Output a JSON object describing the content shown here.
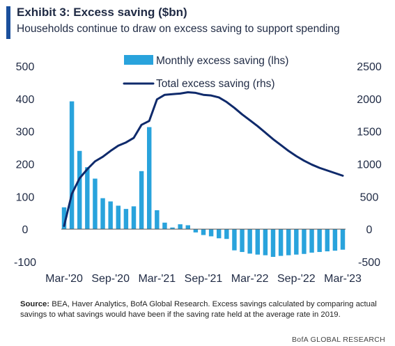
{
  "header": {
    "title": "Exhibit 3: Excess saving ($bn)",
    "subtitle": "Households continue to draw on excess saving to support spending"
  },
  "footer": {
    "source_label": "Source:",
    "source_text": "BEA, Haver Analytics, BofA Global Research. Excess savings calculated by comparing actual savings to what savings would have been if the saving rate held at the average rate in 2019.",
    "brand": "BofA GLOBAL RESEARCH"
  },
  "colors": {
    "bar": "#29a3dc",
    "line": "#0f2a6b",
    "accent": "#1a4f9c"
  },
  "chart_data": {
    "type": "bar+line",
    "categories": [
      "Mar-'20",
      "Apr-'20",
      "May-'20",
      "Jun-'20",
      "Jul-'20",
      "Aug-'20",
      "Sep-'20",
      "Oct-'20",
      "Nov-'20",
      "Dec-'20",
      "Jan-'21",
      "Feb-'21",
      "Mar-'21",
      "Apr-'21",
      "May-'21",
      "Jun-'21",
      "Jul-'21",
      "Aug-'21",
      "Sep-'21",
      "Oct-'21",
      "Nov-'21",
      "Dec-'21",
      "Jan-'22",
      "Feb-'22",
      "Mar-'22",
      "Apr-'22",
      "May-'22",
      "Jun-'22",
      "Jul-'22",
      "Aug-'22",
      "Sep-'22",
      "Oct-'22",
      "Nov-'22",
      "Dec-'22",
      "Jan-'23",
      "Feb-'23",
      "Mar-'23"
    ],
    "x_tick_labels": [
      "Mar-'20",
      "Sep-'20",
      "Mar-'21",
      "Sep-'21",
      "Mar-'22",
      "Sep-'22",
      "Mar-'23"
    ],
    "series": [
      {
        "name": "Monthly excess saving (lhs)",
        "kind": "bar",
        "axis": "left",
        "values": [
          67,
          392,
          240,
          190,
          155,
          95,
          85,
          72,
          62,
          70,
          178,
          313,
          58,
          20,
          5,
          15,
          12,
          -10,
          -18,
          -22,
          -28,
          -30,
          -65,
          -70,
          -75,
          -78,
          -80,
          -85,
          -82,
          -80,
          -78,
          -76,
          -72,
          -70,
          -68,
          -66,
          -63
        ]
      },
      {
        "name": "Total excess saving (rhs)",
        "kind": "line",
        "axis": "right",
        "values": [
          50,
          540,
          780,
          920,
          1040,
          1110,
          1200,
          1280,
          1330,
          1400,
          1600,
          1660,
          1990,
          2060,
          2070,
          2080,
          2100,
          2090,
          2060,
          2050,
          2020,
          1950,
          1860,
          1760,
          1670,
          1580,
          1480,
          1380,
          1290,
          1200,
          1120,
          1050,
          990,
          940,
          900,
          860,
          820
        ]
      }
    ],
    "ylim_left": [
      -100,
      500
    ],
    "yticks_left": [
      -100,
      0,
      100,
      200,
      300,
      400,
      500
    ],
    "ylim_right": [
      -500,
      2500
    ],
    "yticks_right": [
      -500,
      0,
      500,
      1000,
      1500,
      2000,
      2500
    ],
    "grid": false,
    "legend_placement": "top-center"
  }
}
